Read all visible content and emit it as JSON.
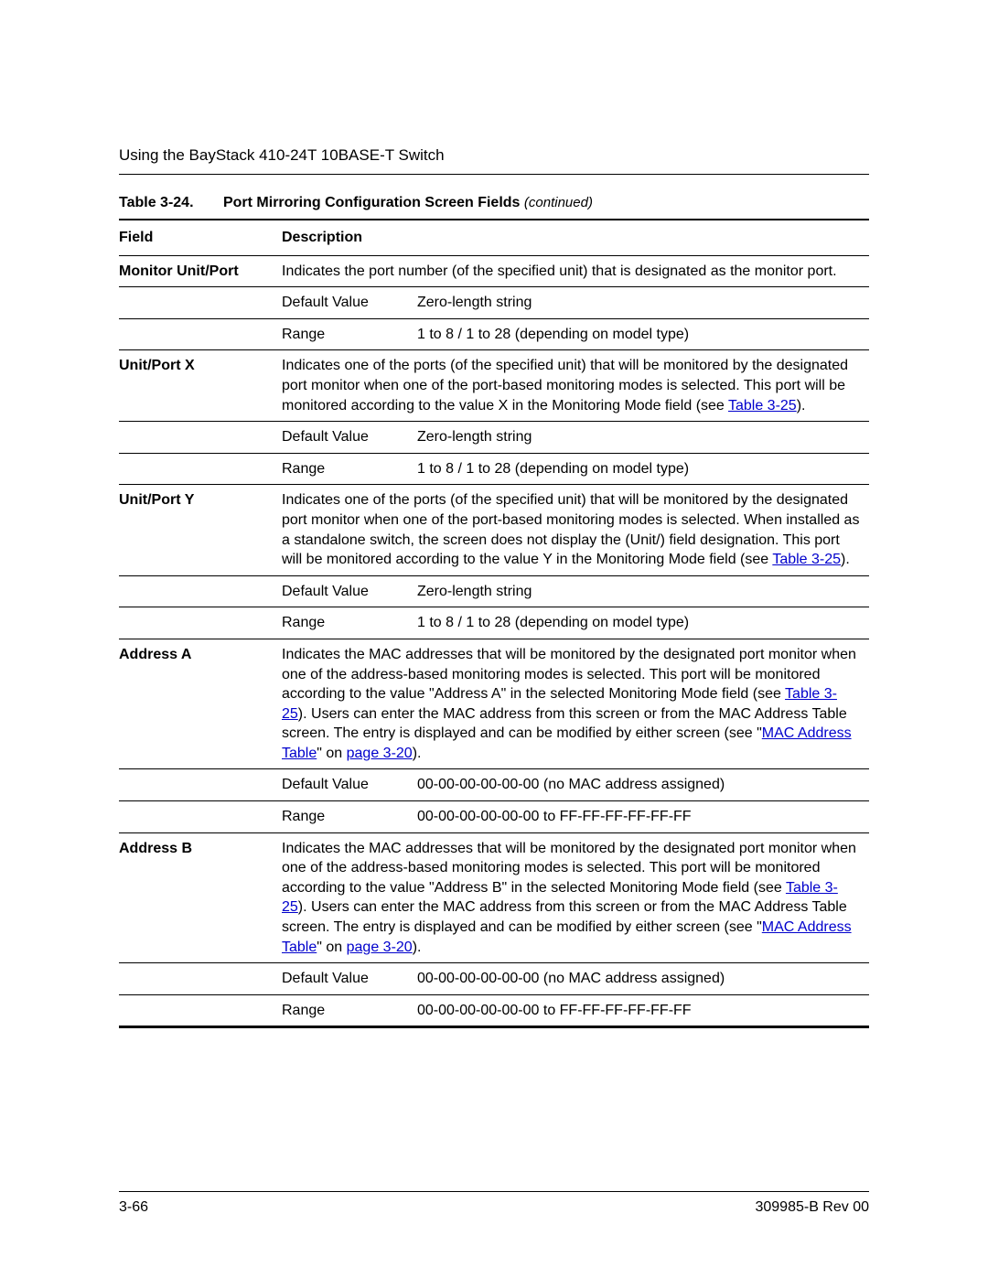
{
  "header": {
    "title": "Using the BayStack 410-24T 10BASE-T Switch"
  },
  "tableCaption": {
    "label": "Table 3-24.",
    "title": "Port Mirroring Configuration Screen Fields",
    "continued": "(continued)"
  },
  "columns": {
    "field": "Field",
    "description": "Description"
  },
  "rows": {
    "monitorUnitPort": {
      "name": "Monitor Unit/Port",
      "desc": "Indicates the port number (of the specified unit) that is designated as the monitor port.",
      "defaultLabel": "Default Value",
      "defaultValue": "Zero-length string",
      "rangeLabel": "Range",
      "rangeValue": "1 to 8 / 1 to 28 (depending on model type)"
    },
    "unitPortX": {
      "name": "Unit/Port X",
      "descBefore": "Indicates one of the ports (of the specified unit) that will be monitored by the designated port monitor when one of the port-based monitoring modes is selected. This port will be monitored according to the value X in the Monitoring Mode field (see ",
      "descLink": "Table 3-25",
      "descAfter": ").",
      "defaultLabel": "Default Value",
      "defaultValue": "Zero-length string",
      "rangeLabel": "Range",
      "rangeValue": "1 to 8 / 1 to 28 (depending on model type)"
    },
    "unitPortY": {
      "name": "Unit/Port Y",
      "descBefore": "Indicates one of the ports (of the specified unit) that will be monitored by the designated port monitor when one of the port-based monitoring modes is selected. When installed as a standalone switch, the screen does not display the (Unit/) field designation. This port will be monitored according to the value Y in the Monitoring Mode field (see ",
      "descLink": "Table 3-25",
      "descAfter": ").",
      "defaultLabel": "Default Value",
      "defaultValue": "Zero-length string",
      "rangeLabel": "Range",
      "rangeValue": "1 to 8 / 1 to 28 (depending on model type)"
    },
    "addressA": {
      "name": "Address A",
      "desc1": "Indicates the MAC addresses that will be monitored by the designated port monitor when one of the address-based monitoring modes is selected. This port will be monitored according to the value \"Address A\" in the selected Monitoring Mode field (see ",
      "link1": "Table 3-25",
      "desc2": "). Users can enter the MAC address from this screen or from the MAC Address Table screen. The entry is displayed and can be modified by either screen (see \"",
      "link2": "MAC Address Table",
      "desc3": "\" on ",
      "link3": "page 3-20",
      "desc4": ").",
      "defaultLabel": "Default Value",
      "defaultValue": "00-00-00-00-00-00 (no MAC address assigned)",
      "rangeLabel": "Range",
      "rangeValue": "00-00-00-00-00-00 to FF-FF-FF-FF-FF-FF"
    },
    "addressB": {
      "name": "Address B",
      "desc1": "Indicates the MAC addresses that will be monitored by the designated port monitor when one of the address-based monitoring modes is selected. This port will be monitored according to the value \"Address B\" in the selected Monitoring Mode field (see ",
      "link1": "Table 3-25",
      "desc2": "). Users can enter the MAC address from this screen or from the MAC Address Table screen. The entry is displayed and can be modified by either screen (see \"",
      "link2": "MAC Address Table",
      "desc3": "\" on ",
      "link3": "page 3-20",
      "desc4": ").",
      "defaultLabel": "Default Value",
      "defaultValue": "00-00-00-00-00-00 (no MAC address assigned)",
      "rangeLabel": "Range",
      "rangeValue": "00-00-00-00-00-00 to FF-FF-FF-FF-FF-FF"
    }
  },
  "footer": {
    "pageNumber": "3-66",
    "docId": "309985-B Rev 00"
  }
}
